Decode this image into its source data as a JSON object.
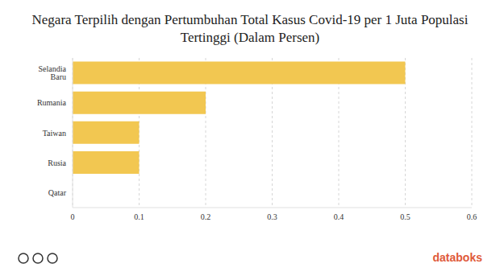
{
  "chart_data": {
    "type": "bar",
    "title": "Negara Terpilih dengan Pertumbuhan Total Kasus Covid-19 per 1 Juta Populasi Tertinggi (Dalam Persen)",
    "categories": [
      "Selandia Baru",
      "Rumania",
      "Taiwan",
      "Rusia",
      "Qatar"
    ],
    "values": [
      0.5,
      0.2,
      0.1,
      0.1,
      0
    ],
    "color": "#f2c751",
    "orientation": "horizontal",
    "xlim": [
      0,
      0.6
    ],
    "xticks": [
      0,
      0.1,
      0.2,
      0.3,
      0.4,
      0.5,
      0.6
    ],
    "grid": true,
    "annotations": [
      "databoks"
    ]
  }
}
